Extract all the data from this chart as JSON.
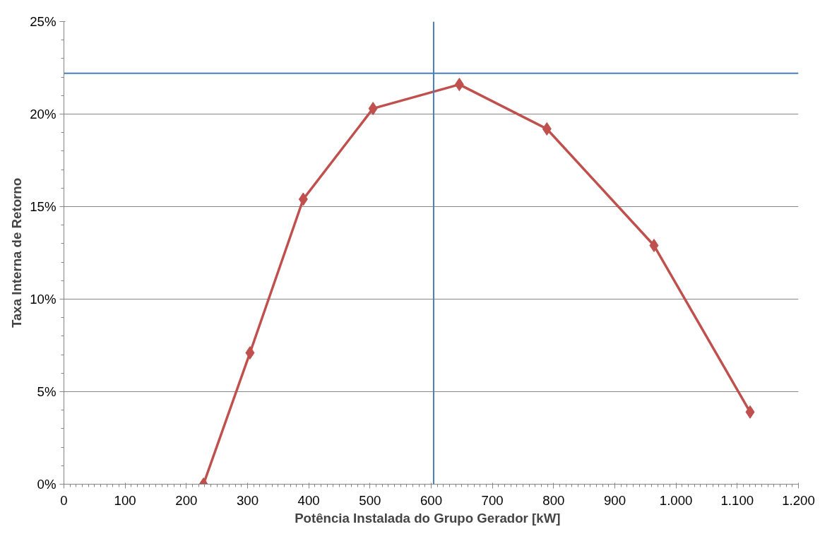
{
  "chart_data": {
    "type": "line",
    "xlabel": "Potência Instalada do Grupo Gerador   [kW]",
    "ylabel": "Taxa Interna de Retorno",
    "x": [
      228,
      304,
      391,
      505,
      646,
      789,
      964,
      1121
    ],
    "series": [
      {
        "color": "#c0504d",
        "values": [
          0,
          7.1,
          15.4,
          20.3,
          21.6,
          19.2,
          12.9,
          3.9
        ]
      }
    ],
    "marker": "diamond",
    "xlim": [
      0,
      1200
    ],
    "xticks": [
      0,
      100,
      200,
      300,
      400,
      500,
      600,
      700,
      800,
      900,
      {
        "value": 1000,
        "label": "1.000"
      },
      {
        "value": 1100,
        "label": "1.100"
      },
      {
        "value": 1200,
        "label": "1.200"
      }
    ],
    "ylim": [
      0,
      25
    ],
    "yticks": [
      {
        "value": 0,
        "label": "0%"
      },
      {
        "value": 5,
        "label": "5%"
      },
      {
        "value": 10,
        "label": "10%"
      },
      {
        "value": 15,
        "label": "15%"
      },
      {
        "value": 20,
        "label": "20%"
      },
      {
        "value": 25,
        "label": "25%"
      }
    ],
    "grid": "y",
    "ref_lines": [
      {
        "axis": "y",
        "value": 22.2,
        "color": "#4a7ebb"
      },
      {
        "axis": "x",
        "value": 604,
        "color": "#4a7ebb"
      }
    ]
  }
}
